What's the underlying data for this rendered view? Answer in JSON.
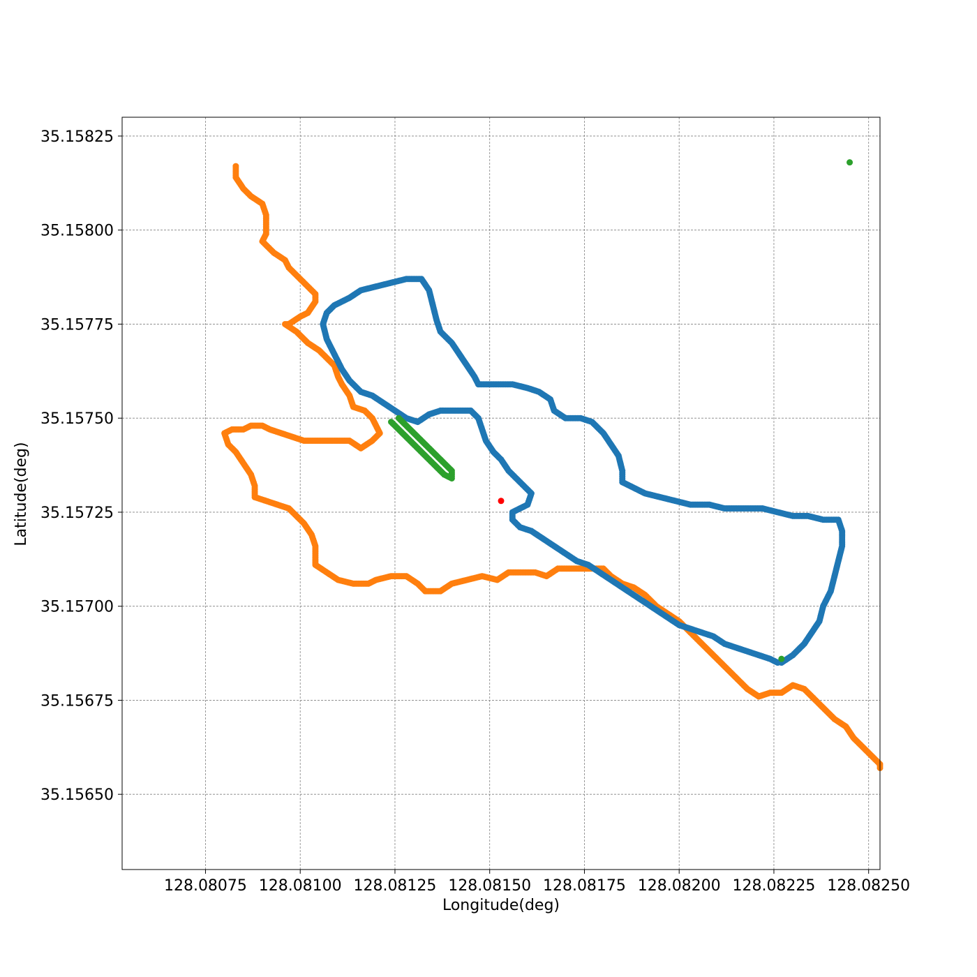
{
  "chart_data": {
    "type": "scatter",
    "title": "",
    "xlabel": "Longitude(deg)",
    "ylabel": "Latitude(deg)",
    "xlim": [
      128.08053,
      128.08253
    ],
    "ylim": [
      35.1563,
      35.1583
    ],
    "xticks": [
      128.08075,
      128.081,
      128.08125,
      128.0815,
      128.08175,
      128.082,
      128.08225,
      128.0825
    ],
    "xtick_labels": [
      "128.08075",
      "128.08100",
      "128.08125",
      "128.08150",
      "128.08175",
      "128.08200",
      "128.08225",
      "128.08250"
    ],
    "yticks": [
      35.1565,
      35.15675,
      35.157,
      35.15725,
      35.1575,
      35.15775,
      35.158,
      35.15825
    ],
    "ytick_labels": [
      "35.15650",
      "35.15675",
      "35.15700",
      "35.15725",
      "35.15750",
      "35.15775",
      "35.15800",
      "35.15825"
    ],
    "grid": true,
    "colors": {
      "blue": "#1f77b4",
      "orange": "#ff7f0e",
      "green": "#2ca02c",
      "red": "#ff0000"
    },
    "series": [
      {
        "color": "#ff7f0e",
        "path": [
          [
            128.08083,
            35.15817
          ],
          [
            128.08083,
            35.15814
          ],
          [
            128.08085,
            35.15811
          ],
          [
            128.08087,
            35.15809
          ],
          [
            128.0809,
            35.15807
          ],
          [
            128.08091,
            35.15804
          ],
          [
            128.08091,
            35.15801
          ],
          [
            128.08091,
            35.15799
          ],
          [
            128.0809,
            35.15797
          ],
          [
            128.08093,
            35.15794
          ],
          [
            128.08096,
            35.15792
          ],
          [
            128.08097,
            35.1579
          ],
          [
            128.081,
            35.15787
          ],
          [
            128.08102,
            35.15785
          ],
          [
            128.08104,
            35.15783
          ],
          [
            128.08104,
            35.15781
          ],
          [
            128.08102,
            35.15778
          ],
          [
            128.081,
            35.15777
          ],
          [
            128.08097,
            35.15775
          ],
          [
            128.08096,
            35.15775
          ],
          [
            128.08099,
            35.15773
          ],
          [
            128.08102,
            35.1577
          ],
          [
            128.08105,
            35.15768
          ],
          [
            128.08107,
            35.15766
          ],
          [
            128.08109,
            35.15764
          ],
          [
            128.0811,
            35.15761
          ],
          [
            128.08111,
            35.15759
          ],
          [
            128.08113,
            35.15756
          ],
          [
            128.08114,
            35.15753
          ],
          [
            128.08117,
            35.15752
          ],
          [
            128.08119,
            35.1575
          ],
          [
            128.0812,
            35.15748
          ],
          [
            128.08121,
            35.15746
          ],
          [
            128.08119,
            35.15744
          ],
          [
            128.08116,
            35.15742
          ],
          [
            128.08113,
            35.15744
          ],
          [
            128.08109,
            35.15744
          ],
          [
            128.08105,
            35.15744
          ],
          [
            128.08101,
            35.15744
          ],
          [
            128.08098,
            35.15745
          ],
          [
            128.08095,
            35.15746
          ],
          [
            128.08092,
            35.15747
          ],
          [
            128.0809,
            35.15748
          ],
          [
            128.08087,
            35.15748
          ],
          [
            128.08085,
            35.15747
          ],
          [
            128.08082,
            35.15747
          ],
          [
            128.0808,
            35.15746
          ],
          [
            128.08081,
            35.15743
          ],
          [
            128.08083,
            35.15741
          ],
          [
            128.08085,
            35.15738
          ],
          [
            128.08087,
            35.15735
          ],
          [
            128.08088,
            35.15732
          ],
          [
            128.08088,
            35.15729
          ],
          [
            128.08091,
            35.15728
          ],
          [
            128.08094,
            35.15727
          ],
          [
            128.08097,
            35.15726
          ],
          [
            128.08099,
            35.15724
          ],
          [
            128.08101,
            35.15722
          ],
          [
            128.08103,
            35.15719
          ],
          [
            128.08104,
            35.15716
          ],
          [
            128.08104,
            35.15713
          ],
          [
            128.08104,
            35.15711
          ],
          [
            128.08107,
            35.15709
          ],
          [
            128.0811,
            35.15707
          ],
          [
            128.08114,
            35.15706
          ],
          [
            128.08118,
            35.15706
          ],
          [
            128.0812,
            35.15707
          ],
          [
            128.08124,
            35.15708
          ],
          [
            128.08128,
            35.15708
          ],
          [
            128.08131,
            35.15706
          ],
          [
            128.08133,
            35.15704
          ],
          [
            128.08137,
            35.15704
          ],
          [
            128.0814,
            35.15706
          ],
          [
            128.08144,
            35.15707
          ],
          [
            128.08148,
            35.15708
          ],
          [
            128.08152,
            35.15707
          ],
          [
            128.08155,
            35.15709
          ],
          [
            128.08159,
            35.15709
          ],
          [
            128.08162,
            35.15709
          ],
          [
            128.08165,
            35.15708
          ],
          [
            128.08168,
            35.1571
          ],
          [
            128.08172,
            35.1571
          ],
          [
            128.08176,
            35.1571
          ],
          [
            128.0818,
            35.1571
          ],
          [
            128.08182,
            35.15708
          ],
          [
            128.08185,
            35.15706
          ],
          [
            128.08188,
            35.15705
          ],
          [
            128.08191,
            35.15703
          ],
          [
            128.08194,
            35.157
          ],
          [
            128.08197,
            35.15698
          ],
          [
            128.082,
            35.15696
          ],
          [
            128.08203,
            35.15693
          ],
          [
            128.08206,
            35.1569
          ],
          [
            128.08209,
            35.15687
          ],
          [
            128.08212,
            35.15684
          ],
          [
            128.08215,
            35.15681
          ],
          [
            128.08218,
            35.15678
          ],
          [
            128.08221,
            35.15676
          ],
          [
            128.08224,
            35.15677
          ],
          [
            128.08227,
            35.15677
          ],
          [
            128.0823,
            35.15679
          ],
          [
            128.08233,
            35.15678
          ],
          [
            128.08235,
            35.15676
          ],
          [
            128.08238,
            35.15673
          ],
          [
            128.08241,
            35.1567
          ],
          [
            128.08244,
            35.15668
          ],
          [
            128.08246,
            35.15665
          ],
          [
            128.08249,
            35.15662
          ],
          [
            128.08251,
            35.1566
          ],
          [
            128.08253,
            35.15658
          ],
          [
            128.08253,
            35.15657
          ]
        ]
      },
      {
        "color": "#1f77b4",
        "path": [
          [
            128.08227,
            35.15685
          ],
          [
            128.0823,
            35.15687
          ],
          [
            128.08233,
            35.1569
          ],
          [
            128.08235,
            35.15693
          ],
          [
            128.08237,
            35.15696
          ],
          [
            128.08238,
            35.157
          ],
          [
            128.0824,
            35.15704
          ],
          [
            128.08241,
            35.15708
          ],
          [
            128.08242,
            35.15712
          ],
          [
            128.08243,
            35.15716
          ],
          [
            128.08243,
            35.1572
          ],
          [
            128.08242,
            35.15723
          ],
          [
            128.08238,
            35.15723
          ],
          [
            128.08234,
            35.15724
          ],
          [
            128.0823,
            35.15724
          ],
          [
            128.08226,
            35.15725
          ],
          [
            128.08222,
            35.15726
          ],
          [
            128.08217,
            35.15726
          ],
          [
            128.08212,
            35.15726
          ],
          [
            128.08208,
            35.15727
          ],
          [
            128.08203,
            35.15727
          ],
          [
            128.08199,
            35.15728
          ],
          [
            128.08195,
            35.15729
          ],
          [
            128.08191,
            35.1573
          ],
          [
            128.08187,
            35.15732
          ],
          [
            128.08185,
            35.15733
          ],
          [
            128.08185,
            35.15736
          ],
          [
            128.08184,
            35.1574
          ],
          [
            128.08182,
            35.15743
          ],
          [
            128.0818,
            35.15746
          ],
          [
            128.08177,
            35.15749
          ],
          [
            128.08174,
            35.1575
          ],
          [
            128.0817,
            35.1575
          ],
          [
            128.08167,
            35.15752
          ],
          [
            128.08166,
            35.15755
          ],
          [
            128.08163,
            35.15757
          ],
          [
            128.0816,
            35.15758
          ],
          [
            128.08156,
            35.15759
          ],
          [
            128.08151,
            35.15759
          ],
          [
            128.08147,
            35.15759
          ],
          [
            128.08146,
            35.15761
          ],
          [
            128.08144,
            35.15764
          ],
          [
            128.08142,
            35.15767
          ],
          [
            128.0814,
            35.1577
          ],
          [
            128.08137,
            35.15773
          ],
          [
            128.08136,
            35.15776
          ],
          [
            128.08135,
            35.1578
          ],
          [
            128.08134,
            35.15784
          ],
          [
            128.08132,
            35.15787
          ],
          [
            128.08128,
            35.15787
          ],
          [
            128.08124,
            35.15786
          ],
          [
            128.0812,
            35.15785
          ],
          [
            128.08116,
            35.15784
          ],
          [
            128.08113,
            35.15782
          ],
          [
            128.08109,
            35.1578
          ],
          [
            128.08107,
            35.15778
          ],
          [
            128.08106,
            35.15775
          ],
          [
            128.08107,
            35.15771
          ],
          [
            128.08109,
            35.15767
          ],
          [
            128.08111,
            35.15763
          ],
          [
            128.08113,
            35.1576
          ],
          [
            128.08116,
            35.15757
          ],
          [
            128.08119,
            35.15756
          ],
          [
            128.08122,
            35.15754
          ],
          [
            128.08125,
            35.15752
          ],
          [
            128.08128,
            35.1575
          ],
          [
            128.08131,
            35.15749
          ],
          [
            128.08134,
            35.15751
          ],
          [
            128.08137,
            35.15752
          ],
          [
            128.08141,
            35.15752
          ],
          [
            128.08145,
            35.15752
          ],
          [
            128.08147,
            35.1575
          ],
          [
            128.08148,
            35.15747
          ],
          [
            128.08149,
            35.15744
          ],
          [
            128.08151,
            35.15741
          ],
          [
            128.08153,
            35.15739
          ],
          [
            128.08155,
            35.15736
          ],
          [
            128.08157,
            35.15734
          ],
          [
            128.08159,
            35.15732
          ],
          [
            128.08161,
            35.1573
          ],
          [
            128.0816,
            35.15727
          ],
          [
            128.08156,
            35.15725
          ],
          [
            128.08156,
            35.15723
          ],
          [
            128.08158,
            35.15721
          ],
          [
            128.08161,
            35.1572
          ],
          [
            128.08164,
            35.15718
          ],
          [
            128.08167,
            35.15716
          ],
          [
            128.0817,
            35.15714
          ],
          [
            128.08173,
            35.15712
          ],
          [
            128.08176,
            35.15711
          ],
          [
            128.08179,
            35.15709
          ],
          [
            128.08182,
            35.15707
          ],
          [
            128.08185,
            35.15705
          ],
          [
            128.08188,
            35.15703
          ],
          [
            128.08191,
            35.15701
          ],
          [
            128.08194,
            35.15699
          ],
          [
            128.08197,
            35.15697
          ],
          [
            128.082,
            35.15695
          ],
          [
            128.08203,
            35.15694
          ],
          [
            128.08206,
            35.15693
          ],
          [
            128.08209,
            35.15692
          ],
          [
            128.08212,
            35.1569
          ],
          [
            128.08215,
            35.15689
          ],
          [
            128.08218,
            35.15688
          ],
          [
            128.08221,
            35.15687
          ],
          [
            128.08224,
            35.15686
          ],
          [
            128.08226,
            35.15685
          ]
        ]
      },
      {
        "color": "#2ca02c",
        "path": [
          [
            128.08124,
            35.15749
          ],
          [
            128.08126,
            35.15747
          ],
          [
            128.08128,
            35.15745
          ],
          [
            128.0813,
            35.15743
          ],
          [
            128.08132,
            35.15741
          ],
          [
            128.08134,
            35.15739
          ],
          [
            128.08136,
            35.15737
          ],
          [
            128.08138,
            35.15735
          ],
          [
            128.0814,
            35.15734
          ],
          [
            128.0814,
            35.15736
          ],
          [
            128.08138,
            35.15738
          ],
          [
            128.08136,
            35.1574
          ],
          [
            128.08134,
            35.15742
          ],
          [
            128.08132,
            35.15744
          ],
          [
            128.0813,
            35.15746
          ],
          [
            128.08128,
            35.15748
          ],
          [
            128.08126,
            35.1575
          ]
        ]
      },
      {
        "color": "#2ca02c",
        "path": [
          [
            128.08245,
            35.15818
          ]
        ]
      },
      {
        "color": "#2ca02c",
        "path": [
          [
            128.08227,
            35.15686
          ]
        ]
      },
      {
        "color": "#ff0000",
        "path": [
          [
            128.08153,
            35.15728
          ]
        ]
      }
    ]
  }
}
